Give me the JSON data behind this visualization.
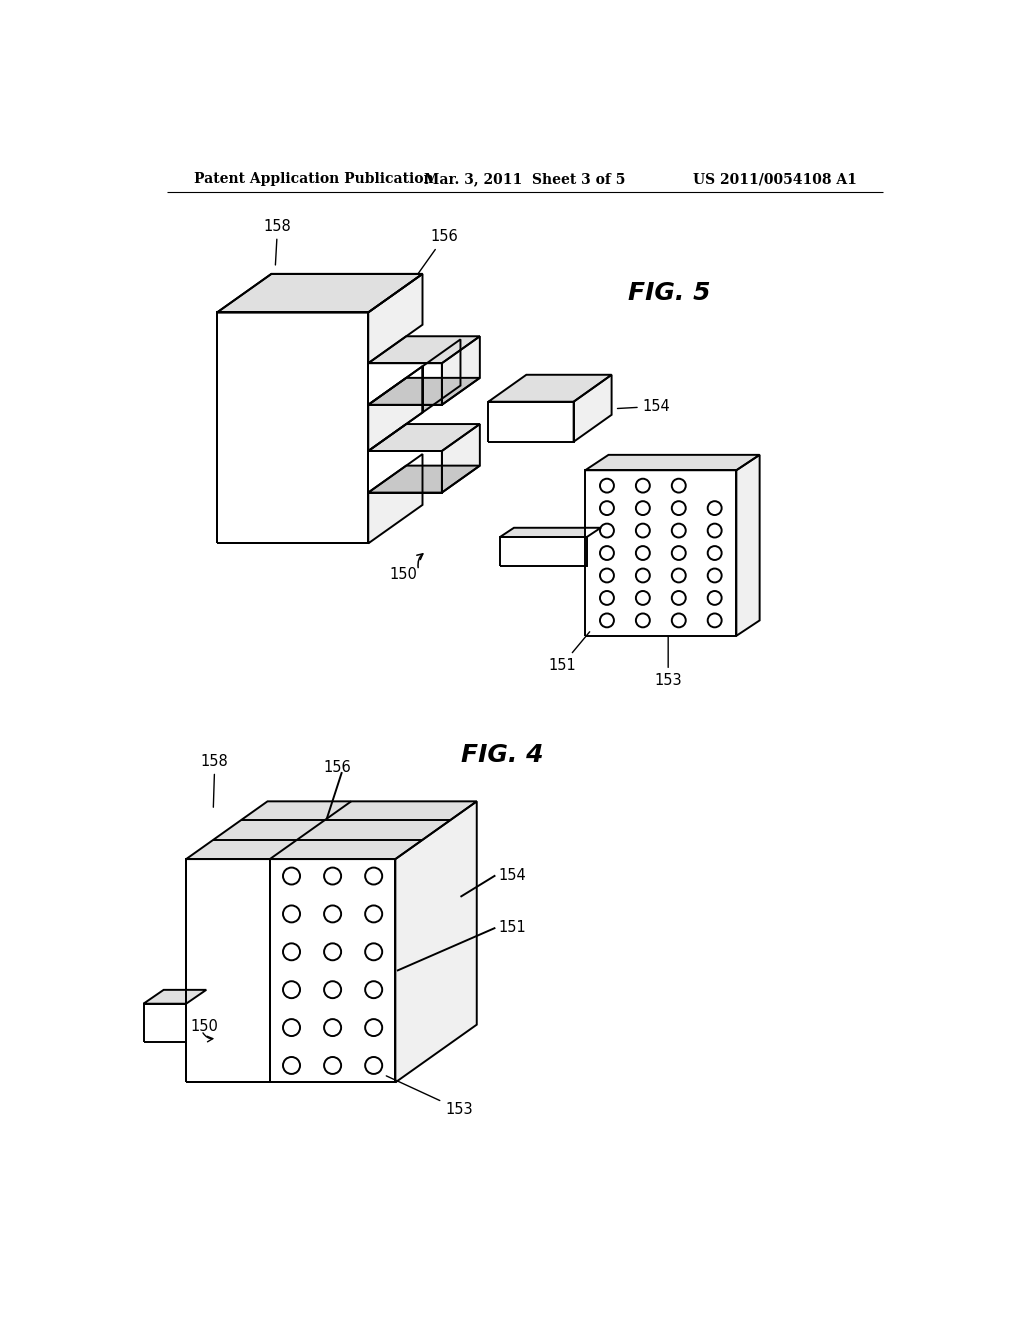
{
  "background_color": "#ffffff",
  "header_left": "Patent Application Publication",
  "header_center": "Mar. 3, 2011  Sheet 3 of 5",
  "header_right": "US 2011/0054108 A1",
  "fig5_label": "FIG. 5",
  "fig4_label": "FIG. 4",
  "line_color": "#000000",
  "line_width": 1.4,
  "label_fontsize": 10.5,
  "header_fontsize": 10,
  "fig_label_fontsize": 18,
  "fill_white": "#ffffff",
  "fill_light": "#f0f0f0",
  "fill_mid": "#e0e0e0",
  "fill_dark": "#c8c8c8"
}
